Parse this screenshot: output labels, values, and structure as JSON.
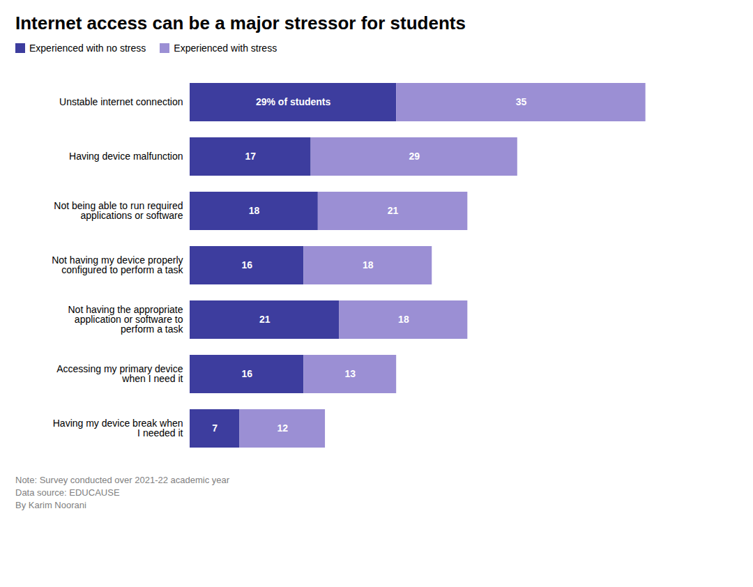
{
  "chart_data": {
    "type": "bar",
    "orientation": "horizontal",
    "stacked": true,
    "title": "Internet access can be a major stressor for students",
    "categories": [
      "Unstable internet connection",
      "Having device malfunction",
      "Not being able to run required\napplications or software",
      "Not having my device properly\nconfigured to perform a task",
      "Not having the appropriate\napplication or software to\nperform a task",
      "Accessing my primary device\nwhen I need it",
      "Having my device break when\nI needed it"
    ],
    "series": [
      {
        "name": "Experienced with no stress",
        "color": "#3d3d9e",
        "values": [
          29,
          17,
          18,
          16,
          21,
          16,
          7
        ],
        "value_labels": [
          "29% of students",
          "17",
          "18",
          "16",
          "21",
          "16",
          "7"
        ]
      },
      {
        "name": "Experienced with stress",
        "color": "#9b8fd4",
        "values": [
          35,
          29,
          21,
          18,
          18,
          13,
          12
        ]
      }
    ],
    "xlim": [
      0,
      75
    ],
    "data_labels": true,
    "tick_labels": "y",
    "grid": false,
    "legend": "upper left",
    "annotations": [
      "Note: Survey conducted over 2021-22 academic year",
      "Data source: EDUCAUSE",
      "By Karim Noorani"
    ]
  }
}
